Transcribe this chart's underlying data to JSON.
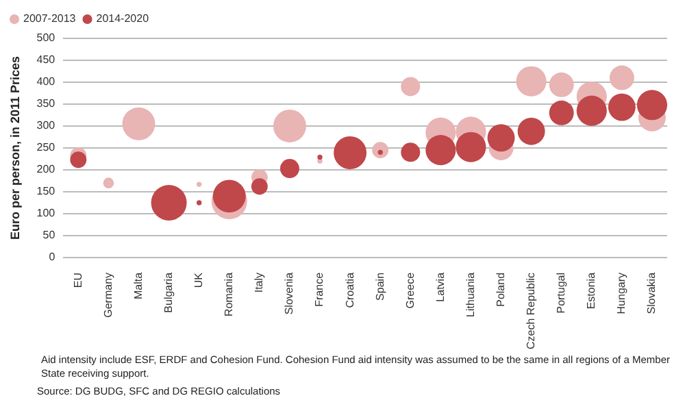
{
  "chart_data": {
    "type": "bubble",
    "ylabel": "Euro per person, in 2011 Prices",
    "categories": [
      "EU",
      "Germany",
      "Malta",
      "Bulgaria",
      "UK",
      "Romania",
      "Italy",
      "Slovenia",
      "France",
      "Croatia",
      "Spain",
      "Greece",
      "Latvia",
      "Lithuania",
      "Poland",
      "Czech Republic",
      "Portugal",
      "Estonia",
      "Hungary",
      "Slovakia"
    ],
    "series": [
      {
        "name": "2007-2013",
        "color": "#e8b4b4",
        "values": [
          233,
          170,
          305,
          null,
          167,
          128,
          183,
          300,
          220,
          null,
          245,
          390,
          285,
          287,
          250,
          402,
          394,
          367,
          410,
          319
        ],
        "sizes": [
          0.21,
          0.09,
          0.85,
          null,
          0.02,
          1,
          0.21,
          0.85,
          0.02,
          null,
          0.21,
          0.29,
          0.72,
          0.72,
          0.48,
          0.72,
          0.48,
          0.72,
          0.48,
          0.59
        ]
      },
      {
        "name": "2014-2020",
        "color": "#c0474a",
        "values": [
          223,
          null,
          null,
          125,
          125,
          140,
          162,
          203,
          229,
          239,
          240,
          240,
          245,
          252,
          273,
          288,
          330,
          335,
          343,
          348
        ],
        "sizes": [
          0.21,
          null,
          null,
          1,
          0.02,
          0.85,
          0.21,
          0.29,
          0.02,
          0.85,
          0.02,
          0.29,
          0.72,
          0.72,
          0.59,
          0.59,
          0.48,
          0.72,
          0.59,
          0.72
        ]
      }
    ],
    "ylim": [
      0,
      500
    ],
    "yticks": [
      0,
      50,
      100,
      150,
      200,
      250,
      300,
      350,
      400,
      450,
      500
    ],
    "grid": "y",
    "legend": "top left",
    "annotations": [
      "Aid intensity include ESF, ERDF and Cohesion Fund. Cohesion Fund aid intensity was assumed to be the same in all regions of a Member State receiving support.",
      "Source: DG BUDG, SFC and DG REGIO calculations"
    ]
  }
}
